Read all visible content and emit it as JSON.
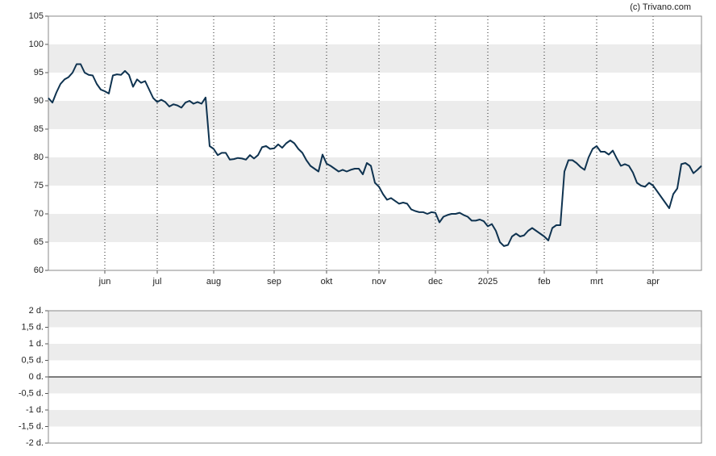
{
  "source": "(c) Trivano.com",
  "chart_data": [
    {
      "type": "line",
      "xlim": [
        0,
        162
      ],
      "xticks": [
        {
          "value": 14,
          "label": "jun"
        },
        {
          "value": 27,
          "label": "jul"
        },
        {
          "value": 41,
          "label": "aug"
        },
        {
          "value": 56,
          "label": "sep"
        },
        {
          "value": 69,
          "label": "okt"
        },
        {
          "value": 82,
          "label": "nov"
        },
        {
          "value": 96,
          "label": "dec"
        },
        {
          "value": 109,
          "label": "2025"
        },
        {
          "value": 123,
          "label": "feb"
        },
        {
          "value": 136,
          "label": "mrt"
        },
        {
          "value": 150,
          "label": "apr"
        }
      ],
      "ylim": [
        60,
        105
      ],
      "yticks": [
        60,
        65,
        70,
        75,
        80,
        85,
        90,
        95,
        100,
        105
      ],
      "color": "#0f3350",
      "values": [
        90.5,
        89.7,
        91.5,
        93,
        93.8,
        94.2,
        95,
        96.5,
        96.5,
        95,
        94.6,
        94.5,
        93,
        92,
        91.7,
        91.3,
        94.5,
        94.7,
        94.6,
        95.3,
        94.6,
        92.5,
        93.8,
        93.2,
        93.5,
        92,
        90.5,
        89.8,
        90.2,
        89.8,
        89,
        89.4,
        89.2,
        88.8,
        89.7,
        90,
        89.5,
        89.8,
        89.5,
        90.6,
        82,
        81.5,
        80.4,
        80.8,
        80.8,
        79.6,
        79.7,
        79.9,
        79.8,
        79.6,
        80.4,
        79.8,
        80.4,
        81.8,
        82,
        81.5,
        81.6,
        82.3,
        81.7,
        82.5,
        83,
        82.5,
        81.5,
        80.8,
        79.5,
        78.5,
        78,
        77.5,
        80.5,
        78.9,
        78.5,
        78,
        77.5,
        77.8,
        77.5,
        77.8,
        78,
        78,
        77,
        79,
        78.5,
        75.5,
        74.8,
        73.5,
        72.5,
        72.8,
        72.3,
        71.8,
        72,
        71.8,
        70.8,
        70.5,
        70.3,
        70.3,
        70,
        70.3,
        70.2,
        68.5,
        69.5,
        69.8,
        70,
        70,
        70.2,
        69.8,
        69.5,
        68.8,
        68.8,
        69,
        68.7,
        67.8,
        68.2,
        67,
        65,
        64.3,
        64.5,
        66,
        66.5,
        66,
        66.2,
        67,
        67.5,
        67,
        66.5,
        66,
        65.3,
        67.5,
        68,
        68,
        77.5,
        79.5,
        79.5,
        79,
        78.3,
        77.8,
        80,
        81.5,
        82,
        81,
        81,
        80.5,
        81.2,
        79.8,
        78.5,
        78.8,
        78.5,
        77.3,
        75.5,
        75,
        74.8,
        75.5,
        75,
        74,
        73,
        72,
        71,
        73.5,
        74.5,
        78.8,
        79,
        78.5,
        77.2,
        77.8,
        78.5
      ]
    },
    {
      "type": "line",
      "ylim": [
        -2,
        2
      ],
      "yticks": [
        {
          "value": -2,
          "label": "-2 d."
        },
        {
          "value": -1.5,
          "label": "-1,5 d."
        },
        {
          "value": -1,
          "label": "-1 d."
        },
        {
          "value": -0.5,
          "label": "-0,5 d."
        },
        {
          "value": 0,
          "label": "0 d."
        },
        {
          "value": 0.5,
          "label": "0,5 d."
        },
        {
          "value": 1,
          "label": "1 d."
        },
        {
          "value": 1.5,
          "label": "1,5 d."
        },
        {
          "value": 2,
          "label": "2 d."
        }
      ]
    }
  ]
}
